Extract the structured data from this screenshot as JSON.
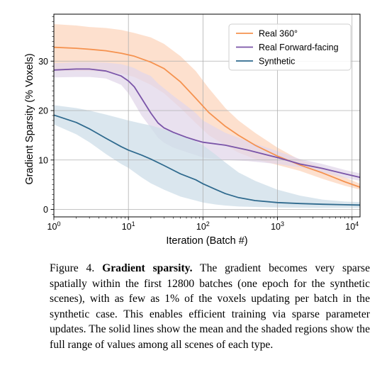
{
  "chart_data": {
    "type": "line",
    "xlabel": "Iteration (Batch #)",
    "ylabel": "Gradient Sparsity (% Voxels)",
    "xscale": "log",
    "xlim": [
      1,
      12800
    ],
    "ylim": [
      -1.5,
      39.5
    ],
    "grid": true,
    "legend_position": "top-right",
    "x_ticks": [
      {
        "value": 1,
        "base": "10",
        "exp": "0"
      },
      {
        "value": 10,
        "base": "10",
        "exp": "1"
      },
      {
        "value": 100,
        "base": "10",
        "exp": "2"
      },
      {
        "value": 1000,
        "base": "10",
        "exp": "3"
      },
      {
        "value": 10000,
        "base": "10",
        "exp": "4"
      }
    ],
    "y_ticks": [
      {
        "value": 0,
        "label": "0"
      },
      {
        "value": 10,
        "label": "10"
      },
      {
        "value": 20,
        "label": "20"
      },
      {
        "value": 30,
        "label": "30"
      }
    ],
    "series": [
      {
        "name": "Real 360°",
        "color": "#f5924f",
        "band_color": "#fcd6bd",
        "x": [
          1,
          2,
          3,
          5,
          8,
          12,
          20,
          30,
          50,
          80,
          120,
          200,
          300,
          500,
          1000,
          2000,
          4000,
          8000,
          12800
        ],
        "y": [
          32.8,
          32.6,
          32.4,
          32.1,
          31.6,
          31.0,
          29.8,
          28.5,
          25.8,
          22.5,
          19.6,
          16.8,
          15.0,
          13.0,
          10.8,
          9.0,
          7.4,
          5.6,
          4.5
        ],
        "upper": [
          37.5,
          37.2,
          36.9,
          36.7,
          36.3,
          35.7,
          34.8,
          33.5,
          31.0,
          28.0,
          24.5,
          20.5,
          18.0,
          15.5,
          12.5,
          10.0,
          8.5,
          6.5,
          5.2
        ],
        "lower": [
          28.0,
          28.0,
          28.0,
          27.8,
          27.5,
          26.8,
          25.2,
          23.5,
          20.5,
          17.5,
          15.0,
          13.0,
          11.5,
          10.2,
          9.0,
          7.8,
          6.2,
          4.8,
          4.0
        ]
      },
      {
        "name": "Real Forward-facing",
        "color": "#7a54a8",
        "band_color": "#e1d7ea",
        "x": [
          1,
          2,
          3,
          5,
          8,
          10,
          12,
          15,
          20,
          25,
          30,
          40,
          60,
          80,
          100,
          200,
          400,
          1000,
          2000,
          4000,
          8000,
          12800
        ],
        "y": [
          28.2,
          28.4,
          28.4,
          28.0,
          27.0,
          26.0,
          24.8,
          22.5,
          19.5,
          17.5,
          16.5,
          15.6,
          14.6,
          14.0,
          13.6,
          13.0,
          12.0,
          10.5,
          9.2,
          8.3,
          7.2,
          6.5
        ],
        "upper": [
          29.6,
          29.8,
          29.8,
          29.7,
          29.4,
          29.0,
          28.6,
          27.8,
          27.0,
          25.5,
          24.5,
          23.0,
          21.0,
          19.5,
          18.0,
          15.5,
          13.8,
          11.8,
          10.2,
          9.2,
          8.0,
          7.3
        ],
        "lower": [
          26.7,
          26.8,
          26.8,
          26.5,
          25.2,
          23.5,
          21.5,
          19.0,
          16.5,
          14.5,
          13.5,
          12.5,
          11.6,
          11.0,
          10.5,
          10.0,
          9.8,
          9.2,
          8.5,
          7.5,
          6.4,
          5.8
        ]
      },
      {
        "name": "Synthetic",
        "color": "#2f6a8e",
        "band_color": "#cddde8",
        "x": [
          1,
          2,
          3,
          5,
          8,
          10,
          15,
          20,
          30,
          50,
          80,
          100,
          150,
          200,
          300,
          500,
          1000,
          2000,
          4000,
          8000,
          12800
        ],
        "y": [
          19.1,
          17.6,
          16.3,
          14.4,
          12.7,
          12.0,
          11.0,
          10.2,
          8.9,
          7.2,
          6.0,
          5.2,
          4.0,
          3.2,
          2.4,
          1.8,
          1.4,
          1.2,
          1.05,
          0.95,
          0.9
        ],
        "upper": [
          21.1,
          20.5,
          20.0,
          19.2,
          18.4,
          18.0,
          17.4,
          17.0,
          16.2,
          15.0,
          13.8,
          13.0,
          11.0,
          9.5,
          7.5,
          5.8,
          4.0,
          2.8,
          2.0,
          1.6,
          1.5
        ],
        "lower": [
          17.2,
          15.2,
          13.6,
          11.2,
          9.2,
          8.4,
          6.5,
          5.3,
          4.0,
          2.6,
          1.8,
          1.4,
          1.0,
          0.8,
          0.6,
          0.5,
          0.4,
          0.35,
          0.3,
          0.3,
          0.3
        ]
      }
    ]
  },
  "caption": {
    "prefix": "Figure 4. ",
    "title": "Gradient sparsity.",
    "body": " The gradient becomes very sparse spatially within the first 12800 batches (one epoch for the synthetic scenes), with as few as 1% of the voxels updating per batch in the synthetic case. This enables efficient training via sparse parameter updates. The solid lines show the mean and the shaded regions show the full range of values among all scenes of each type."
  }
}
